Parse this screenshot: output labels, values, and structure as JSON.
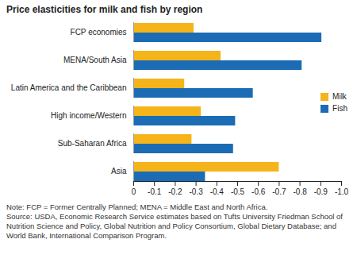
{
  "chart_data": {
    "type": "bar",
    "orientation": "horizontal",
    "title": "Price elasticities for milk and fish by region",
    "categories": [
      "FCP economies",
      "MENA/South Asia",
      "Latin America and the Caribbean",
      "High income/Western",
      "Sub-Saharan Africa",
      "Asia"
    ],
    "series": [
      {
        "name": "Milk",
        "color": "#f4b41a",
        "values": [
          -0.29,
          -0.42,
          -0.245,
          -0.325,
          -0.28,
          -0.7
        ]
      },
      {
        "name": "Fish",
        "color": "#1b6cb5",
        "values": [
          -0.905,
          -0.81,
          -0.575,
          -0.49,
          -0.48,
          -0.345
        ]
      }
    ],
    "xlim": [
      0,
      -1
    ],
    "xticks": [
      0,
      -0.1,
      -0.2,
      -0.3,
      -0.4,
      -0.5,
      -0.6,
      -0.7,
      -0.8,
      -0.9,
      {
        "value": -1,
        "label": "-1.0"
      }
    ],
    "grid": false,
    "legend": "right",
    "notes": [
      "Note: FCP = Former Centrally Planned; MENA = Middle East and North Africa.",
      "Source: USDA, Economic Research Service estimates based on Tufts University Friedman School of Nutrition Science and Policy, Global Nutrition and Policy Consortium, Global Dietary Database; and World Bank, International Comparison Program."
    ]
  }
}
